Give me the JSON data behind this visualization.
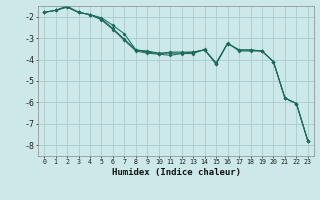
{
  "xlabel": "Humidex (Indice chaleur)",
  "background_color": "#cce8e8",
  "grid_color": "#aacccc",
  "line_color": "#1a6b5a",
  "x_ticks": [
    0,
    1,
    2,
    3,
    4,
    5,
    6,
    7,
    8,
    9,
    10,
    11,
    12,
    13,
    14,
    15,
    16,
    17,
    18,
    19,
    20,
    21,
    22,
    23
  ],
  "y_ticks": [
    -8,
    -7,
    -6,
    -5,
    -4,
    -3,
    -2
  ],
  "xlim": [
    -0.5,
    23.5
  ],
  "ylim": [
    -8.5,
    -1.5
  ],
  "series": [
    [
      0,
      1,
      2,
      3,
      4,
      5,
      6,
      7,
      8,
      9,
      10,
      11,
      12,
      13,
      14,
      15,
      16,
      17,
      18,
      19,
      20,
      21,
      22,
      23
    ],
    [
      -1.8,
      -1.7,
      -1.55,
      -1.8,
      -1.9,
      -2.05,
      -2.4,
      -2.8,
      -3.55,
      -3.6,
      -3.7,
      -3.7,
      -3.7,
      -3.65,
      -3.55,
      -4.15,
      -3.25,
      -3.55,
      -3.55,
      -3.6,
      -4.1,
      -5.8,
      -6.05,
      -7.8
    ],
    [
      -1.8,
      -1.7,
      -1.55,
      -1.8,
      -1.9,
      -2.1,
      -2.55,
      -3.05,
      -3.55,
      -3.65,
      -3.72,
      -3.65,
      -3.65,
      -3.65,
      -3.55,
      -4.2,
      -3.25,
      -3.55,
      -3.55,
      -3.6,
      -4.1,
      -5.8,
      -6.05,
      -7.8
    ],
    [
      -1.8,
      -1.7,
      -1.5,
      -1.8,
      -1.9,
      -2.15,
      -2.6,
      -3.1,
      -3.6,
      -3.7,
      -3.75,
      -3.8,
      -3.72,
      -3.72,
      -3.52,
      -4.22,
      -3.22,
      -3.6,
      -3.6,
      -3.6,
      -4.1,
      -5.8,
      -6.05,
      -7.8
    ]
  ]
}
